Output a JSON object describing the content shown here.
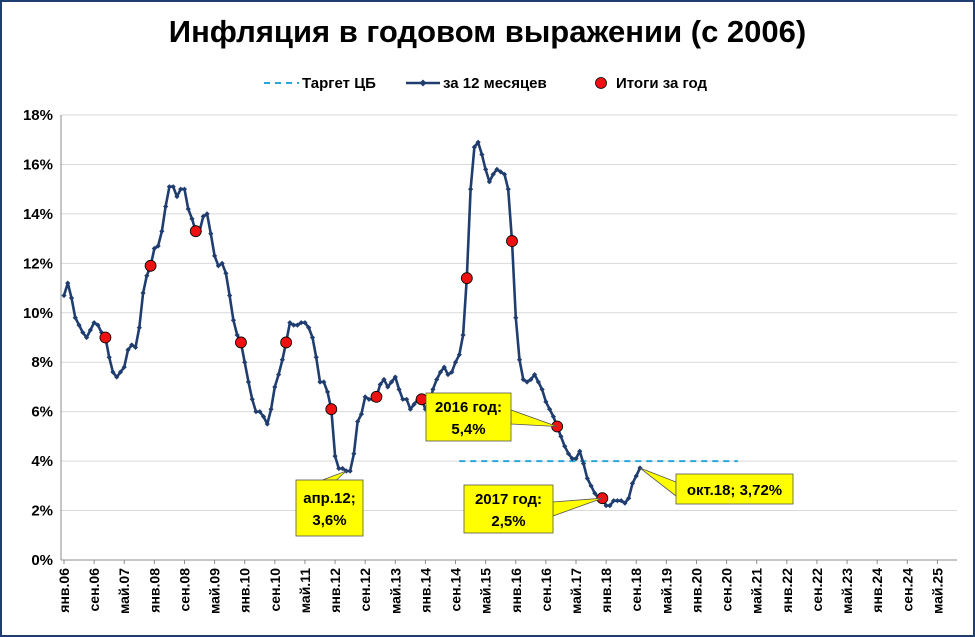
{
  "chart_data": {
    "type": "line",
    "title": "Инфляция в годовом выражении (с 2006)",
    "xlabel": "",
    "ylabel": "",
    "ylim": [
      0,
      18
    ],
    "y_ticks": [
      "0%",
      "2%",
      "4%",
      "6%",
      "8%",
      "10%",
      "12%",
      "14%",
      "16%",
      "18%"
    ],
    "x_tick_labels": [
      "янв.06",
      "сен.06",
      "май.07",
      "янв.08",
      "сен.08",
      "май.09",
      "янв.10",
      "сен.10",
      "май.11",
      "янв.12",
      "сен.12",
      "май.13",
      "янв.14",
      "сен.14",
      "май.15",
      "янв.16",
      "сен.16",
      "май.17",
      "янв.18",
      "сен.18",
      "май.19",
      "янв.20",
      "сен.20",
      "май.21",
      "янв.22",
      "сен.22",
      "май.23",
      "янв.24",
      "сен.24",
      "май.25"
    ],
    "legend": {
      "position": "top",
      "entries": [
        "Таргет ЦБ",
        "за 12 месяцев",
        "Итоги за год"
      ]
    },
    "grid": "horizontal",
    "colors": {
      "line": "#1f3d6e",
      "target": "#2aa6d8",
      "annual": "#ee1111",
      "callout_fill": "#ffff00"
    },
    "series": [
      {
        "name": "за 12 месяцев",
        "x": [
          "2006-01",
          "2006-02",
          "2006-03",
          "2006-04",
          "2006-05",
          "2006-06",
          "2006-07",
          "2006-08",
          "2006-09",
          "2006-10",
          "2006-11",
          "2006-12",
          "2007-01",
          "2007-02",
          "2007-03",
          "2007-04",
          "2007-05",
          "2007-06",
          "2007-07",
          "2007-08",
          "2007-09",
          "2007-10",
          "2007-11",
          "2007-12",
          "2008-01",
          "2008-02",
          "2008-03",
          "2008-04",
          "2008-05",
          "2008-06",
          "2008-07",
          "2008-08",
          "2008-09",
          "2008-10",
          "2008-11",
          "2008-12",
          "2009-01",
          "2009-02",
          "2009-03",
          "2009-04",
          "2009-05",
          "2009-06",
          "2009-07",
          "2009-08",
          "2009-09",
          "2009-10",
          "2009-11",
          "2009-12",
          "2010-01",
          "2010-02",
          "2010-03",
          "2010-04",
          "2010-05",
          "2010-06",
          "2010-07",
          "2010-08",
          "2010-09",
          "2010-10",
          "2010-11",
          "2010-12",
          "2011-01",
          "2011-02",
          "2011-03",
          "2011-04",
          "2011-05",
          "2011-06",
          "2011-07",
          "2011-08",
          "2011-09",
          "2011-10",
          "2011-11",
          "2011-12",
          "2012-01",
          "2012-02",
          "2012-03",
          "2012-04",
          "2012-05",
          "2012-06",
          "2012-07",
          "2012-08",
          "2012-09",
          "2012-10",
          "2012-11",
          "2012-12",
          "2013-01",
          "2013-02",
          "2013-03",
          "2013-04",
          "2013-05",
          "2013-06",
          "2013-07",
          "2013-08",
          "2013-09",
          "2013-10",
          "2013-11",
          "2013-12",
          "2014-01",
          "2014-02",
          "2014-03",
          "2014-04",
          "2014-05",
          "2014-06",
          "2014-07",
          "2014-08",
          "2014-09",
          "2014-10",
          "2014-11",
          "2014-12",
          "2015-01",
          "2015-02",
          "2015-03",
          "2015-04",
          "2015-05",
          "2015-06",
          "2015-07",
          "2015-08",
          "2015-09",
          "2015-10",
          "2015-11",
          "2015-12",
          "2016-01",
          "2016-02",
          "2016-03",
          "2016-04",
          "2016-05",
          "2016-06",
          "2016-07",
          "2016-08",
          "2016-09",
          "2016-10",
          "2016-11",
          "2016-12",
          "2017-01",
          "2017-02",
          "2017-03",
          "2017-04",
          "2017-05",
          "2017-06",
          "2017-07",
          "2017-08",
          "2017-09",
          "2017-10",
          "2017-11",
          "2017-12",
          "2018-01",
          "2018-02",
          "2018-03",
          "2018-04",
          "2018-05",
          "2018-06",
          "2018-07",
          "2018-08",
          "2018-09",
          "2018-10"
        ],
        "values": [
          10.7,
          11.2,
          10.6,
          9.8,
          9.5,
          9.2,
          9.0,
          9.3,
          9.6,
          9.5,
          9.2,
          9.0,
          8.2,
          7.6,
          7.4,
          7.6,
          7.8,
          8.5,
          8.7,
          8.6,
          9.4,
          10.8,
          11.5,
          11.9,
          12.6,
          12.7,
          13.3,
          14.3,
          15.1,
          15.1,
          14.7,
          15.0,
          15.0,
          14.2,
          13.8,
          13.3,
          13.3,
          13.9,
          14.0,
          13.2,
          12.3,
          11.9,
          12.0,
          11.6,
          10.7,
          9.7,
          9.1,
          8.8,
          8.0,
          7.2,
          6.5,
          6.0,
          6.0,
          5.8,
          5.5,
          6.1,
          7.0,
          7.5,
          8.1,
          8.8,
          9.6,
          9.5,
          9.5,
          9.6,
          9.6,
          9.4,
          9.0,
          8.2,
          7.2,
          7.2,
          6.8,
          6.1,
          4.2,
          3.7,
          3.7,
          3.6,
          3.6,
          4.3,
          5.6,
          5.9,
          6.6,
          6.5,
          6.5,
          6.6,
          7.1,
          7.3,
          7.0,
          7.2,
          7.4,
          6.9,
          6.5,
          6.5,
          6.1,
          6.3,
          6.5,
          6.5,
          6.1,
          6.2,
          6.9,
          7.3,
          7.6,
          7.8,
          7.5,
          7.6,
          8.0,
          8.3,
          9.1,
          11.4,
          15.0,
          16.7,
          16.9,
          16.4,
          15.8,
          15.3,
          15.6,
          15.8,
          15.7,
          15.6,
          15.0,
          12.9,
          9.8,
          8.1,
          7.3,
          7.2,
          7.3,
          7.5,
          7.2,
          6.9,
          6.4,
          6.1,
          5.8,
          5.4,
          5.0,
          4.6,
          4.3,
          4.1,
          4.1,
          4.4,
          3.9,
          3.3,
          3.0,
          2.7,
          2.5,
          2.5,
          2.2,
          2.2,
          2.4,
          2.4,
          2.4,
          2.3,
          2.5,
          3.1,
          3.4,
          3.72
        ]
      },
      {
        "name": "Итоги за год",
        "x": [
          "2006-12",
          "2007-12",
          "2008-12",
          "2009-12",
          "2010-12",
          "2011-12",
          "2012-12",
          "2013-12",
          "2014-12",
          "2015-12",
          "2016-12",
          "2017-12"
        ],
        "values": [
          9.0,
          11.9,
          13.3,
          8.8,
          8.8,
          6.1,
          6.6,
          6.5,
          11.4,
          12.9,
          5.4,
          2.5
        ]
      },
      {
        "name": "Таргет ЦБ",
        "x": [
          "2014-10",
          "2020-12"
        ],
        "values": [
          4.0,
          4.0
        ]
      }
    ],
    "annotations": [
      {
        "lines": [
          "апр.12;",
          "3,6%"
        ],
        "x": "2012-04",
        "y": 3.6
      },
      {
        "lines": [
          "2016 год:",
          "5,4%"
        ],
        "x": "2016-12",
        "y": 5.4
      },
      {
        "lines": [
          "2017 год:",
          "2,5%"
        ],
        "x": "2017-12",
        "y": 2.5
      },
      {
        "lines": [
          "окт.18; 3,72%"
        ],
        "x": "2018-10",
        "y": 3.72
      }
    ]
  }
}
